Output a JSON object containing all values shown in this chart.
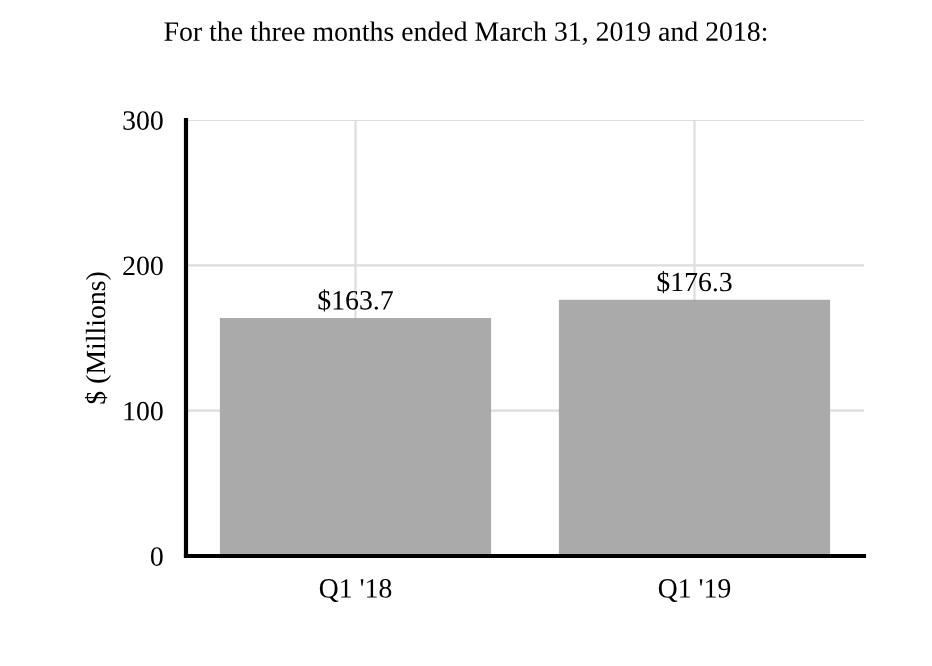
{
  "chart_data": {
    "type": "bar",
    "title": "For the three months ended March 31, 2019 and 2018:",
    "ylabel": "$ (Millions)",
    "categories": [
      "Q1 '18",
      "Q1 '19"
    ],
    "values": [
      163.7,
      176.3
    ],
    "color": "#aaaaaa",
    "value_labels": [
      "$163.7",
      "$176.3"
    ],
    "ylim": [
      0,
      300
    ],
    "yticks": [
      0,
      100,
      200,
      300
    ],
    "grid": true
  }
}
